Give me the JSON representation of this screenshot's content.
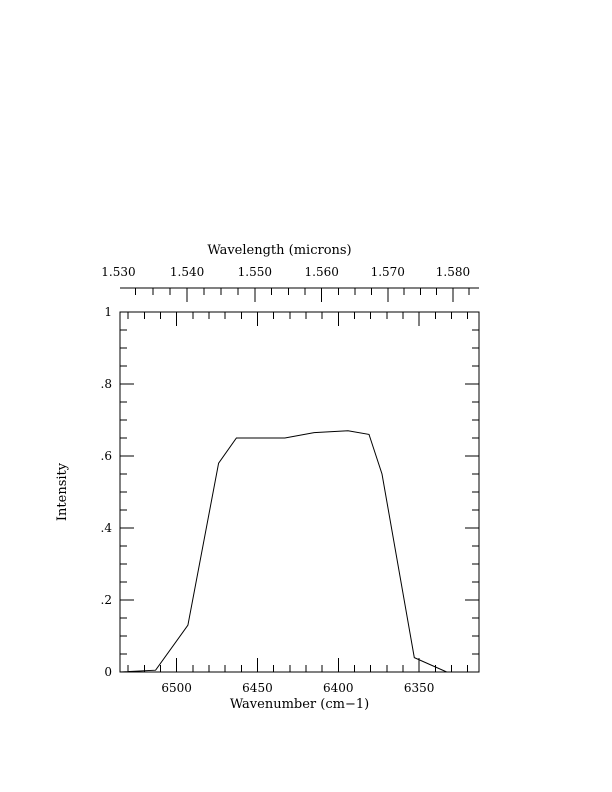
{
  "chart_data": {
    "type": "line",
    "xlabel": "Wavenumber (cm−1)",
    "ylabel": "Intensity",
    "top_axis_label": "Wavelength (microns)",
    "xlim": [
      6535,
      6313
    ],
    "ylim": [
      0,
      1
    ],
    "x_ticks": [
      6500,
      6450,
      6400,
      6350
    ],
    "x_tick_labels": [
      "6500",
      "6450",
      "6400",
      "6350"
    ],
    "y_ticks": [
      0,
      0.2,
      0.4,
      0.6,
      0.8,
      1
    ],
    "y_tick_labels": [
      "0",
      ".2",
      ".4",
      ".6",
      ".8",
      "1"
    ],
    "top_ticks": [
      1.53,
      1.54,
      1.55,
      1.56,
      1.57,
      1.58
    ],
    "top_tick_labels": [
      "1.530",
      "1.540",
      "1.550",
      "1.560",
      "1.570",
      "1.580"
    ],
    "grid": false,
    "series": [
      {
        "x": [
          6535,
          6513,
          6493,
          6474,
          6463,
          6433,
          6415,
          6394,
          6381,
          6373,
          6353,
          6333,
          6313
        ],
        "y": [
          0.0,
          0.005,
          0.13,
          0.58,
          0.65,
          0.65,
          0.665,
          0.67,
          0.66,
          0.55,
          0.04,
          0.0,
          0.0
        ]
      }
    ]
  }
}
